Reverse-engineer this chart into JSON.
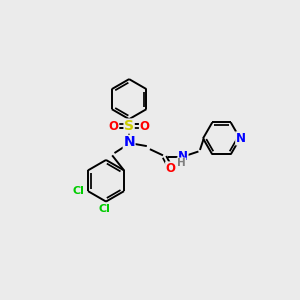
{
  "background_color": "#ebebeb",
  "bond_color": "#000000",
  "atom_colors": {
    "N": "#0000ff",
    "O": "#ff0000",
    "S": "#cccc00",
    "Cl": "#00cc00",
    "H": "#7f7f7f",
    "C": "#000000"
  },
  "figsize": [
    3.0,
    3.0
  ],
  "dpi": 100,
  "lw": 1.4,
  "font_size": 8.5
}
